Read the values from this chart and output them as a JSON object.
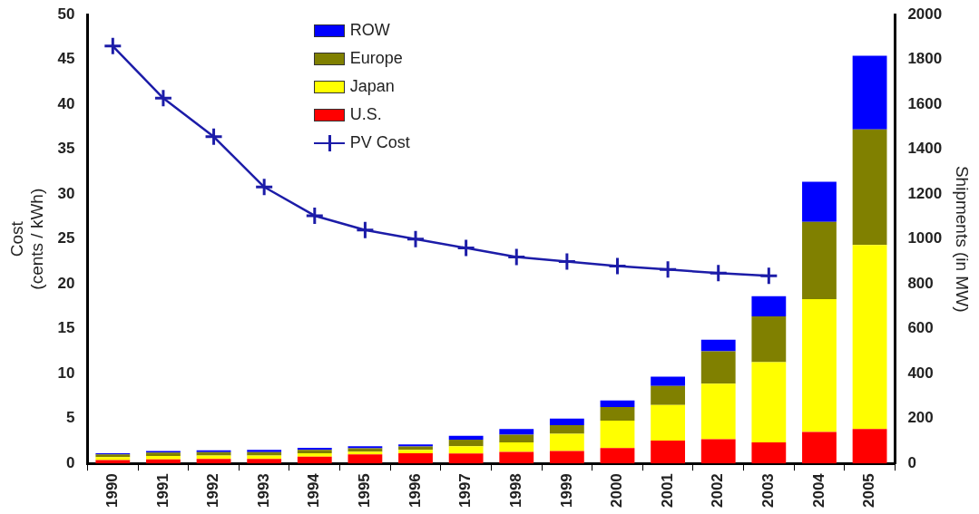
{
  "chart_data": {
    "type": "bar",
    "stacked": true,
    "ylabel": "Cost\n(cents / kWh)",
    "y2label": "Shipments (in MW)",
    "categories": [
      "1990",
      "1991",
      "1992",
      "1993",
      "1994",
      "1995",
      "1996",
      "1997",
      "1998",
      "1999",
      "2000",
      "2001",
      "2002",
      "2003",
      "2004",
      "2005"
    ],
    "series": [
      {
        "name": "U.S.",
        "axis": "y2",
        "color": "#ff0000",
        "values": [
          15,
          18,
          20,
          20,
          30,
          40,
          45,
          44,
          51,
          55,
          68,
          102,
          108,
          94,
          140,
          153
        ]
      },
      {
        "name": "Japan",
        "axis": "y2",
        "color": "#ffff00",
        "values": [
          13,
          15,
          15,
          15,
          15,
          12,
          15,
          33,
          43,
          77,
          123,
          158,
          247,
          357,
          592,
          821
        ]
      },
      {
        "name": "Europe",
        "axis": "y2",
        "color": "#808000",
        "values": [
          12,
          15,
          15,
          15,
          15,
          15,
          15,
          29,
          34,
          38,
          60,
          85,
          145,
          204,
          345,
          515
        ]
      },
      {
        "name": "ROW",
        "axis": "y2",
        "color": "#0000ff",
        "values": [
          5,
          7,
          8,
          10,
          9,
          10,
          10,
          17,
          25,
          30,
          30,
          42,
          51,
          90,
          178,
          328
        ]
      },
      {
        "name": "PV Cost",
        "type": "line",
        "axis": "y",
        "color": "#1c1ca8",
        "marker": "cross",
        "values": [
          46.5,
          40.7,
          36.4,
          30.8,
          27.6,
          26,
          25,
          24,
          23,
          22.5,
          22,
          21.6,
          21.2,
          20.9,
          null,
          null
        ]
      }
    ],
    "ylim": [
      0,
      50
    ],
    "yticks": [
      0,
      5,
      10,
      15,
      20,
      25,
      30,
      35,
      40,
      45,
      50
    ],
    "y2lim": [
      0,
      2000
    ],
    "y2ticks": [
      0,
      200,
      400,
      600,
      800,
      1000,
      1200,
      1400,
      1600,
      1800,
      2000
    ],
    "grid": false,
    "legend": "top"
  }
}
